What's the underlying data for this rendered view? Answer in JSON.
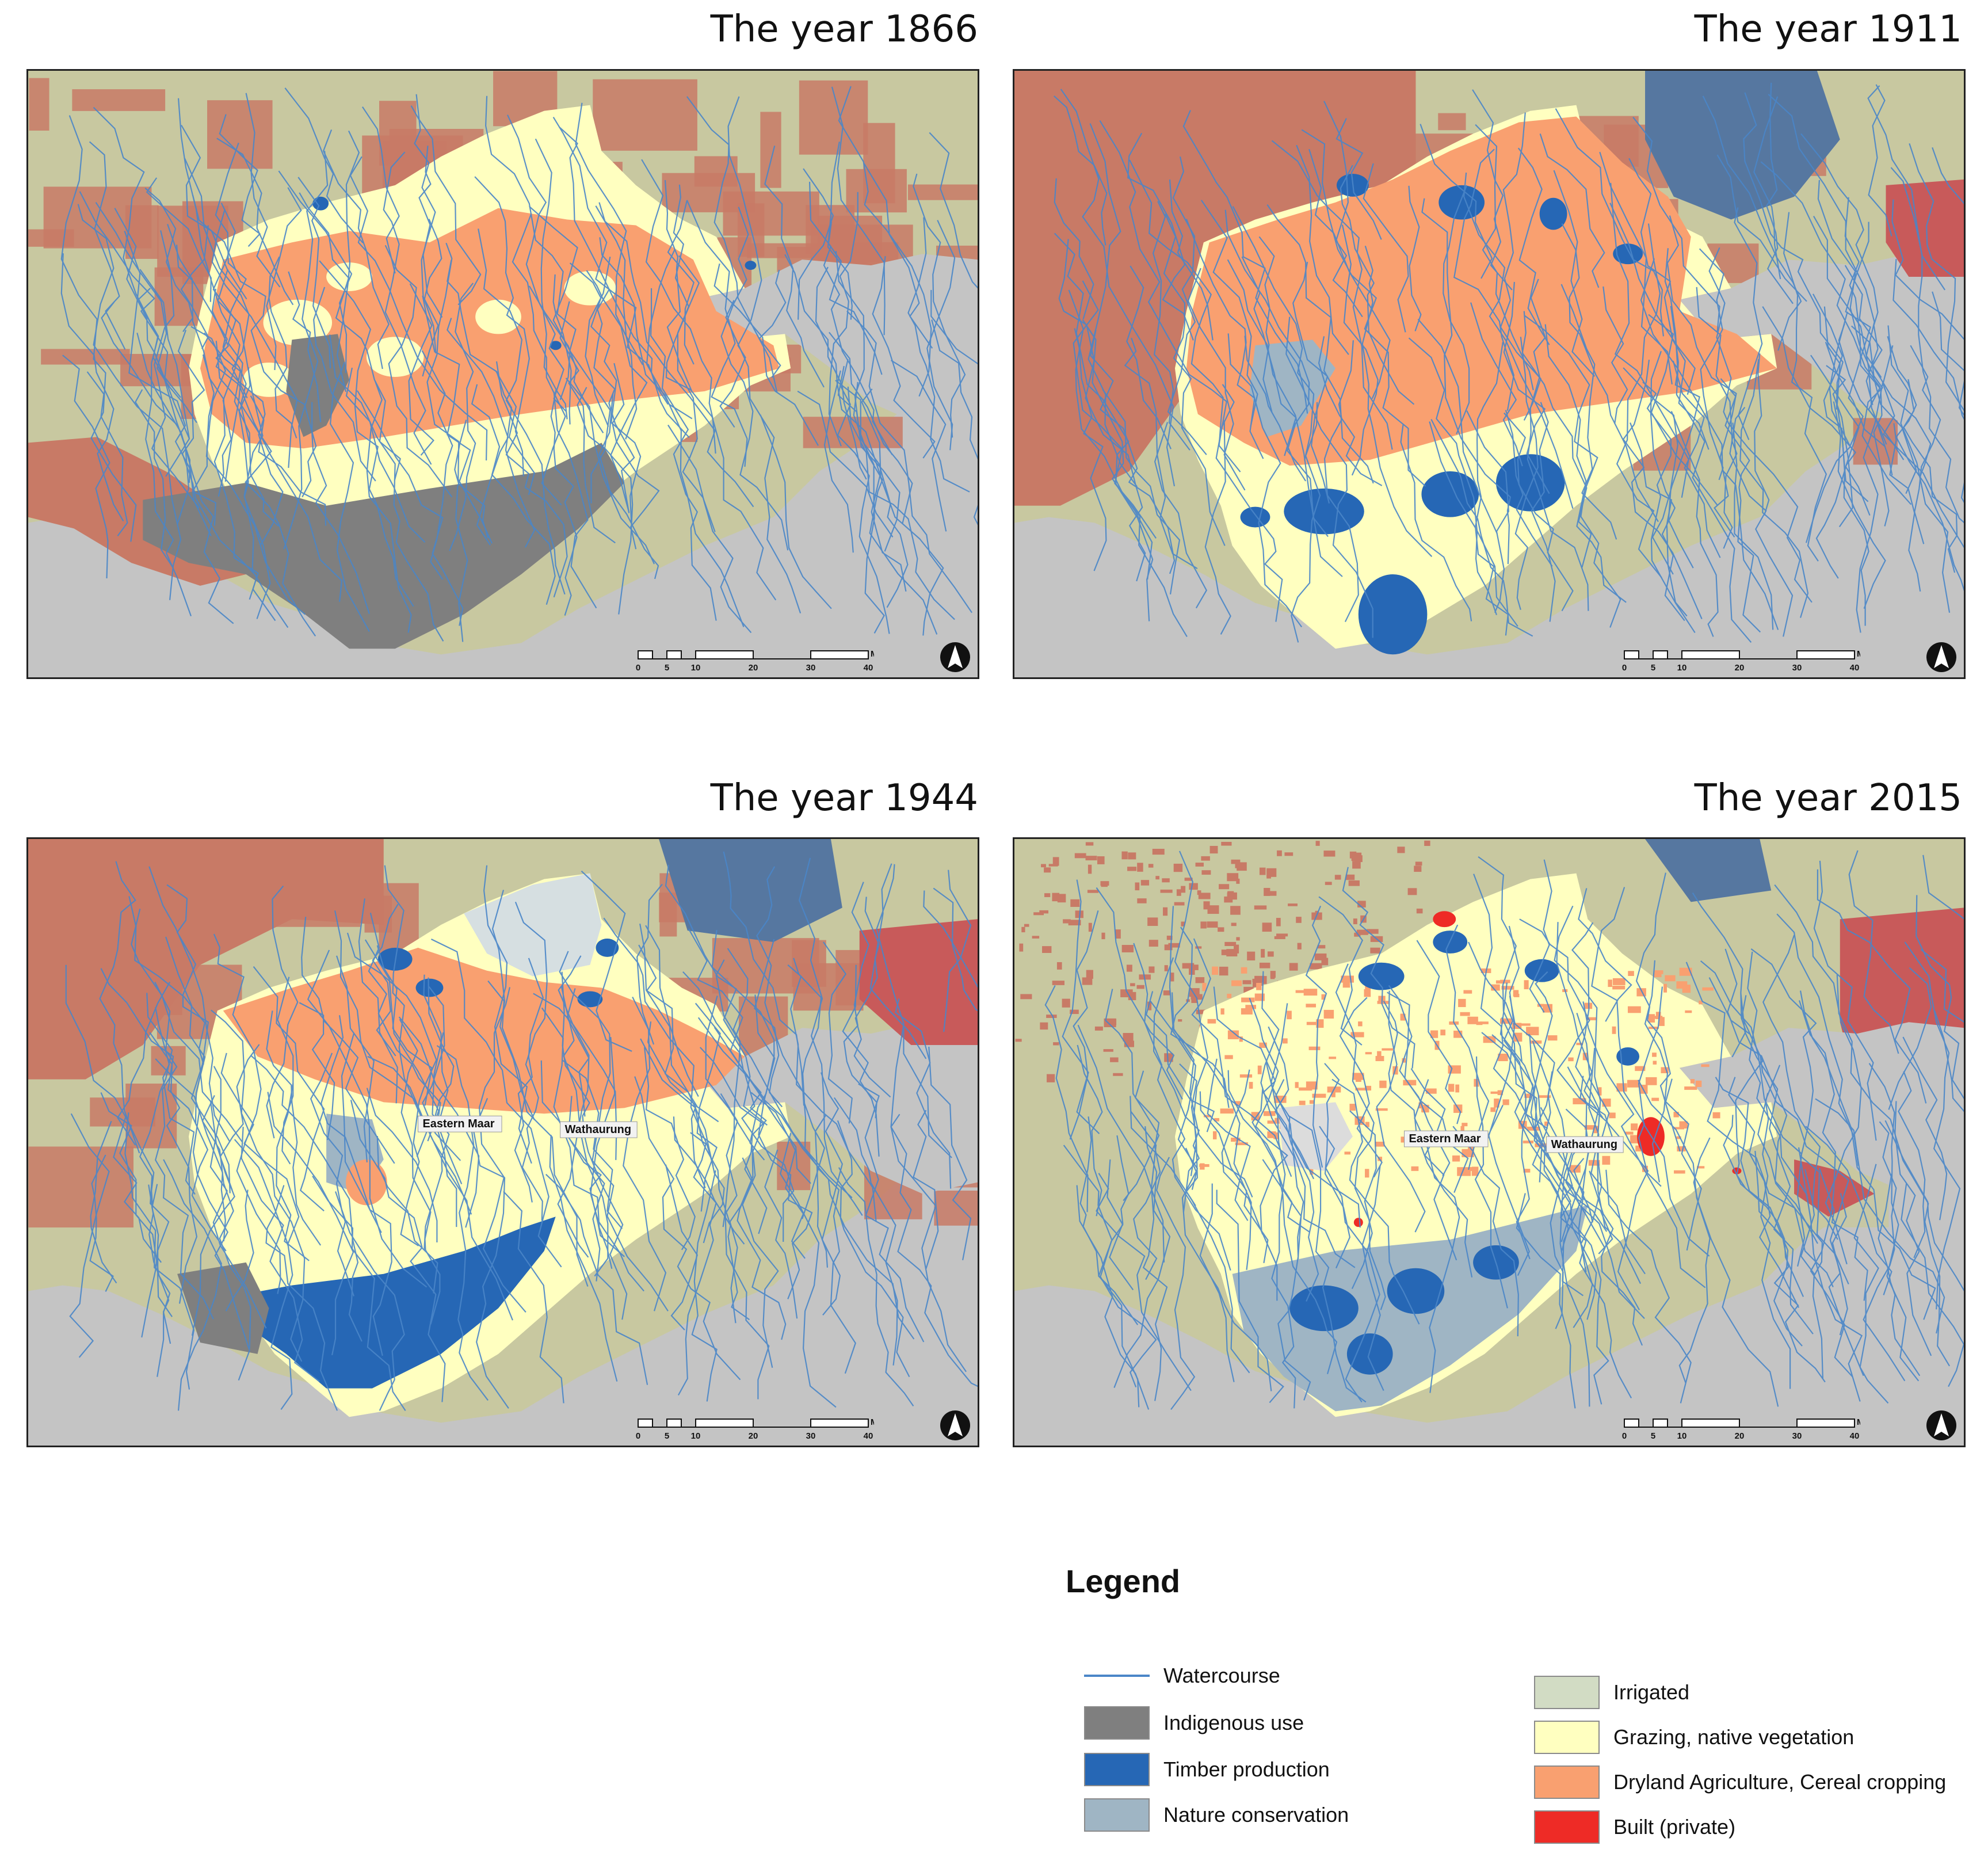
{
  "panels": [
    {
      "title": "The year 1866",
      "id": "1866"
    },
    {
      "title": "The year 1911",
      "id": "1911"
    },
    {
      "title": "The year 1944",
      "id": "1944"
    },
    {
      "title": "The year 2015",
      "id": "2015"
    }
  ],
  "region_labels": {
    "eastern": "Eastern Maar",
    "wathaurung": "Wathaurung"
  },
  "scale": {
    "ticks": [
      "0",
      "5",
      "10",
      "20",
      "30",
      "40"
    ],
    "unit": "Miles"
  },
  "legend": {
    "title": "Legend",
    "left_items": [
      {
        "label": "Watercourse",
        "kind": "line",
        "color": "#4a86c8"
      },
      {
        "label": "Indigenous use",
        "kind": "fill",
        "color": "#7f7f7f"
      },
      {
        "label": "Timber production",
        "kind": "fill",
        "color": "#2667b5"
      },
      {
        "label": "Nature conservation",
        "kind": "fill",
        "color": "#9fb5c4"
      }
    ],
    "right_items": [
      {
        "label": "Irrigated",
        "kind": "fill",
        "color": "#d2dcc4"
      },
      {
        "label": "Grazing, native vegetation",
        "kind": "fill",
        "color": "#ffffc0"
      },
      {
        "label": "Dryland Agriculture, Cereal cropping",
        "kind": "fill",
        "color": "#f9a070"
      },
      {
        "label": "Built (private)",
        "kind": "fill",
        "color": "#ee2b26"
      }
    ]
  },
  "colors": {
    "sea": "#c4c4c4",
    "surround_irrigated": "#c8c8a0",
    "surround_dryland": "#c87a66",
    "indigenous": "#7f7f7f",
    "timber": "#2667b5",
    "timber_muted": "#5677a0",
    "conservation": "#9fb5c4",
    "grazing": "#ffffc0",
    "dryland": "#f9a070",
    "built": "#ee2b26",
    "built_muted": "#c85a5a",
    "water": "#4a86c8"
  }
}
